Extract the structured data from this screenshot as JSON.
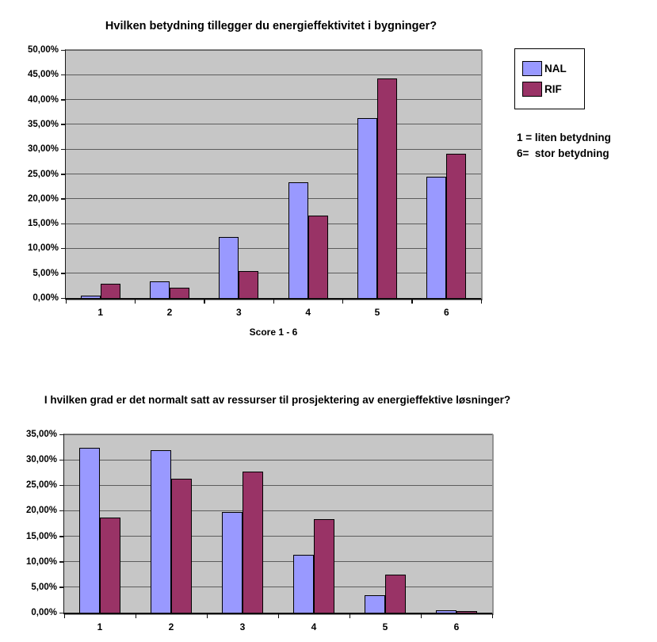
{
  "chart_data": [
    {
      "type": "bar",
      "title": "Hvilken betydning tillegger du energieffektivitet i bygninger?",
      "categories": [
        "1",
        "2",
        "3",
        "4",
        "5",
        "6"
      ],
      "series": [
        {
          "name": "NAL",
          "color": "#9999ff",
          "values": [
            0.5,
            3.3,
            12.3,
            23.3,
            36.2,
            24.5
          ]
        },
        {
          "name": "RIF",
          "color": "#993366",
          "values": [
            2.9,
            2.0,
            5.4,
            16.6,
            44.2,
            29.0
          ]
        }
      ],
      "xlabel": "Score 1 - 6",
      "ylabel": "",
      "ylim": [
        0,
        50
      ],
      "yticks": [
        0,
        5,
        10,
        15,
        20,
        25,
        30,
        35,
        40,
        45,
        50
      ],
      "ytick_labels": [
        "0,00%",
        "5,00%",
        "10,00%",
        "15,00%",
        "20,00%",
        "25,00%",
        "30,00%",
        "35,00%",
        "40,00%",
        "45,00%",
        "50,00%"
      ],
      "grid": true,
      "legend_position": "right",
      "plot_bg": "#c6c6c6",
      "annotation_lines": [
        "1 = liten betydning",
        "6=  stor betydning"
      ]
    },
    {
      "type": "bar",
      "title": "I hvilken grad er det normalt satt av ressurser til prosjektering av energieffektive løsninger?",
      "categories": [
        "1",
        "2",
        "3",
        "4",
        "5",
        "6"
      ],
      "series": [
        {
          "name": "NAL",
          "color": "#9999ff",
          "values": [
            32.3,
            31.9,
            19.8,
            11.4,
            3.4,
            0.5
          ]
        },
        {
          "name": "RIF",
          "color": "#993366",
          "values": [
            18.7,
            26.3,
            27.7,
            18.3,
            7.4,
            0.2
          ]
        }
      ],
      "xlabel": "",
      "ylabel": "",
      "ylim": [
        0,
        35
      ],
      "yticks": [
        0,
        5,
        10,
        15,
        20,
        25,
        30,
        35
      ],
      "ytick_labels": [
        "0,00%",
        "5,00%",
        "10,00%",
        "15,00%",
        "20,00%",
        "25,00%",
        "30,00%",
        "35,00%"
      ],
      "grid": true,
      "legend_position": "none",
      "plot_bg": "#c6c6c6",
      "annotation_lines": []
    }
  ]
}
